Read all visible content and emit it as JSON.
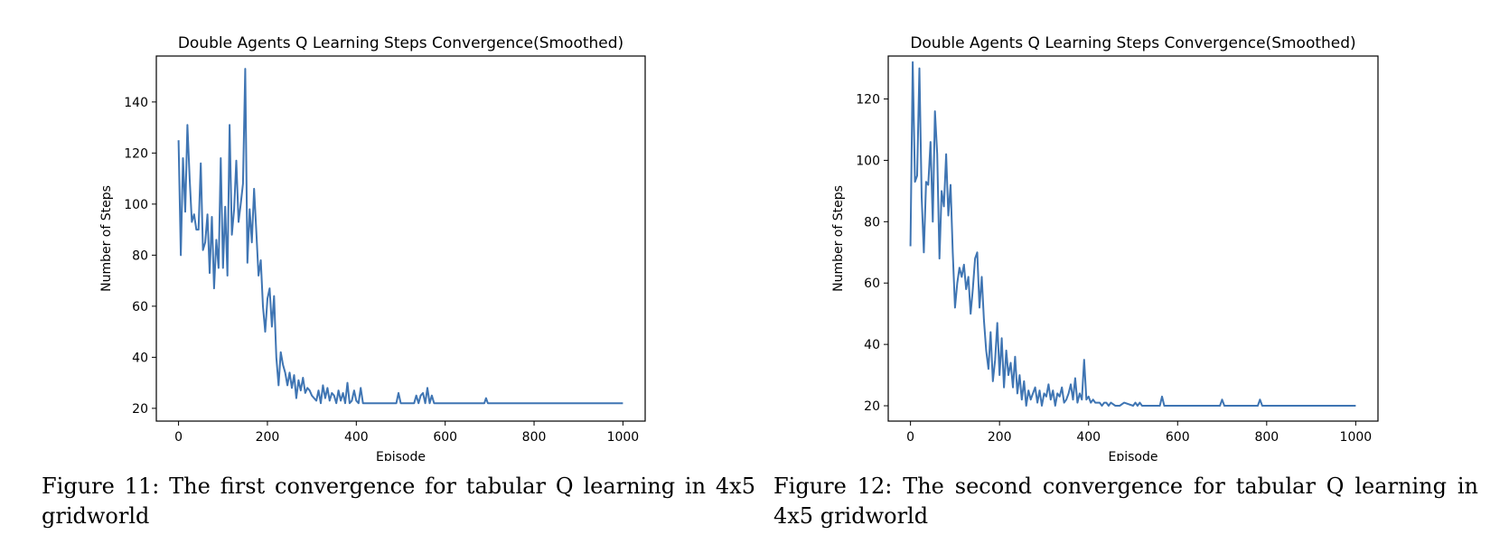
{
  "chart_data": [
    {
      "type": "line",
      "title": "Double Agents Q Learning Steps Convergence(Smoothed)",
      "xlabel": "Episode",
      "ylabel": "Number of Steps",
      "xlim": [
        -50,
        1050
      ],
      "ylim": [
        15,
        158
      ],
      "xticks": [
        0,
        200,
        400,
        600,
        800,
        1000
      ],
      "yticks": [
        20,
        40,
        60,
        80,
        100,
        120,
        140
      ],
      "grid": false,
      "line_color": "#3f75b3",
      "series": [
        {
          "x": [
            0,
            5,
            10,
            15,
            20,
            25,
            30,
            35,
            40,
            45,
            50,
            55,
            60,
            65,
            70,
            75,
            80,
            85,
            90,
            95,
            100,
            105,
            110,
            115,
            120,
            125,
            130,
            135,
            140,
            145,
            150,
            155,
            160,
            165,
            170,
            175,
            180,
            185,
            190,
            195,
            200,
            205,
            210,
            215,
            220,
            225,
            230,
            235,
            240,
            245,
            250,
            255,
            260,
            265,
            270,
            275,
            280,
            285,
            290,
            295,
            300,
            305,
            310,
            315,
            320,
            325,
            330,
            335,
            340,
            345,
            350,
            355,
            360,
            365,
            370,
            375,
            380,
            385,
            390,
            395,
            400,
            405,
            410,
            415,
            420,
            425,
            430,
            490,
            495,
            500,
            505,
            530,
            535,
            540,
            545,
            550,
            555,
            560,
            565,
            570,
            575,
            680,
            688,
            692,
            696,
            700,
            1000
          ],
          "values": [
            125,
            80,
            118,
            97,
            131,
            110,
            93,
            96,
            90,
            90,
            116,
            82,
            85,
            96,
            73,
            95,
            67,
            86,
            75,
            118,
            75,
            99,
            72,
            131,
            88,
            98,
            117,
            93,
            100,
            108,
            153,
            77,
            98,
            85,
            106,
            89,
            72,
            78,
            60,
            50,
            63,
            67,
            52,
            64,
            40,
            29,
            42,
            37,
            34,
            29,
            34,
            28,
            33,
            24,
            31,
            27,
            32,
            26,
            28,
            27,
            25,
            24,
            23,
            27,
            22,
            29,
            24,
            28,
            23,
            26,
            25,
            22,
            27,
            23,
            26,
            22,
            30,
            22,
            23,
            27,
            23,
            22,
            28,
            22,
            22,
            22,
            22,
            22,
            26,
            22,
            22,
            22,
            25,
            22,
            25,
            26,
            22,
            28,
            22,
            25,
            22,
            22,
            22,
            24,
            22,
            22,
            22
          ]
        }
      ]
    },
    {
      "type": "line",
      "title": "Double Agents Q Learning Steps Convergence(Smoothed)",
      "xlabel": "Episode",
      "ylabel": "Number of Steps",
      "xlim": [
        -50,
        1050
      ],
      "ylim": [
        15,
        134
      ],
      "xticks": [
        0,
        200,
        400,
        600,
        800,
        1000
      ],
      "yticks": [
        20,
        40,
        60,
        80,
        100,
        120
      ],
      "grid": false,
      "line_color": "#3f75b3",
      "series": [
        {
          "x": [
            0,
            5,
            10,
            15,
            20,
            25,
            30,
            35,
            40,
            45,
            50,
            55,
            60,
            65,
            70,
            75,
            80,
            85,
            90,
            95,
            100,
            105,
            110,
            115,
            120,
            125,
            130,
            135,
            140,
            145,
            150,
            155,
            160,
            165,
            170,
            175,
            180,
            185,
            190,
            195,
            200,
            205,
            210,
            215,
            220,
            225,
            230,
            235,
            240,
            245,
            250,
            255,
            260,
            265,
            270,
            275,
            280,
            285,
            290,
            295,
            300,
            305,
            310,
            315,
            320,
            325,
            330,
            335,
            340,
            345,
            350,
            355,
            360,
            365,
            370,
            375,
            380,
            385,
            390,
            395,
            400,
            405,
            410,
            415,
            420,
            425,
            430,
            435,
            440,
            445,
            450,
            460,
            470,
            480,
            500,
            505,
            510,
            515,
            520,
            560,
            565,
            570,
            575,
            695,
            700,
            705,
            780,
            785,
            790,
            1000
          ],
          "values": [
            72,
            132,
            93,
            95,
            130,
            88,
            70,
            93,
            92,
            106,
            80,
            116,
            102,
            68,
            90,
            85,
            102,
            82,
            92,
            70,
            52,
            60,
            65,
            62,
            66,
            58,
            62,
            50,
            58,
            68,
            70,
            52,
            62,
            48,
            38,
            32,
            44,
            28,
            35,
            47,
            30,
            42,
            26,
            38,
            30,
            34,
            26,
            36,
            24,
            30,
            22,
            28,
            20,
            25,
            22,
            24,
            26,
            21,
            25,
            20,
            24,
            23,
            27,
            22,
            25,
            20,
            24,
            23,
            26,
            21,
            22,
            24,
            27,
            22,
            29,
            21,
            24,
            22,
            35,
            22,
            23,
            21,
            22,
            21,
            21,
            21,
            20,
            21,
            21,
            20,
            21,
            20,
            20,
            21,
            20,
            21,
            20,
            21,
            20,
            20,
            23,
            20,
            20,
            20,
            22,
            20,
            20,
            22,
            20,
            20
          ]
        }
      ]
    }
  ],
  "captions": [
    "Figure 11: The first convergence for tabular Q learning in 4x5 gridworld",
    "Figure 12: The second convergence for tabular Q learning in 4x5 gridworld"
  ]
}
